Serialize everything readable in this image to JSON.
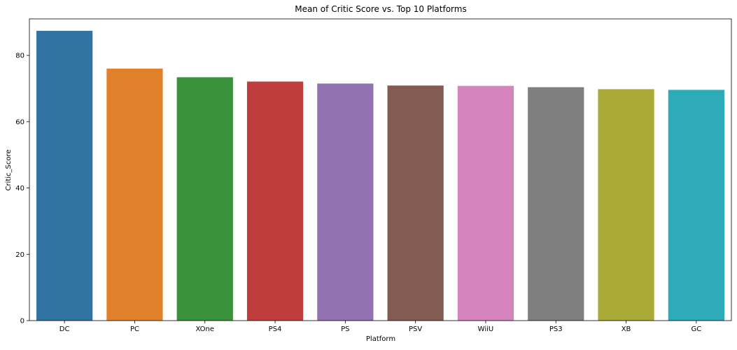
{
  "chart_data": {
    "type": "bar",
    "title": "Mean of Critic Score vs. Top 10 Platforms",
    "xlabel": "Platform",
    "ylabel": "Critic_Score",
    "categories": [
      "DC",
      "PC",
      "XOne",
      "PS4",
      "PS",
      "PSV",
      "WiiU",
      "PS3",
      "XB",
      "GC"
    ],
    "values": [
      87.4,
      76.0,
      73.4,
      72.1,
      71.5,
      70.9,
      70.8,
      70.4,
      69.8,
      69.6
    ],
    "colors": [
      "#3274a1",
      "#e1812c",
      "#3a923a",
      "#c03d3e",
      "#9372b2",
      "#845b53",
      "#d684bd",
      "#7f7f7f",
      "#a9aa35",
      "#2eabb8"
    ],
    "ylim": [
      0,
      91
    ],
    "yticks": [
      0,
      20,
      40,
      60,
      80
    ],
    "grid": false,
    "legend": "none"
  }
}
